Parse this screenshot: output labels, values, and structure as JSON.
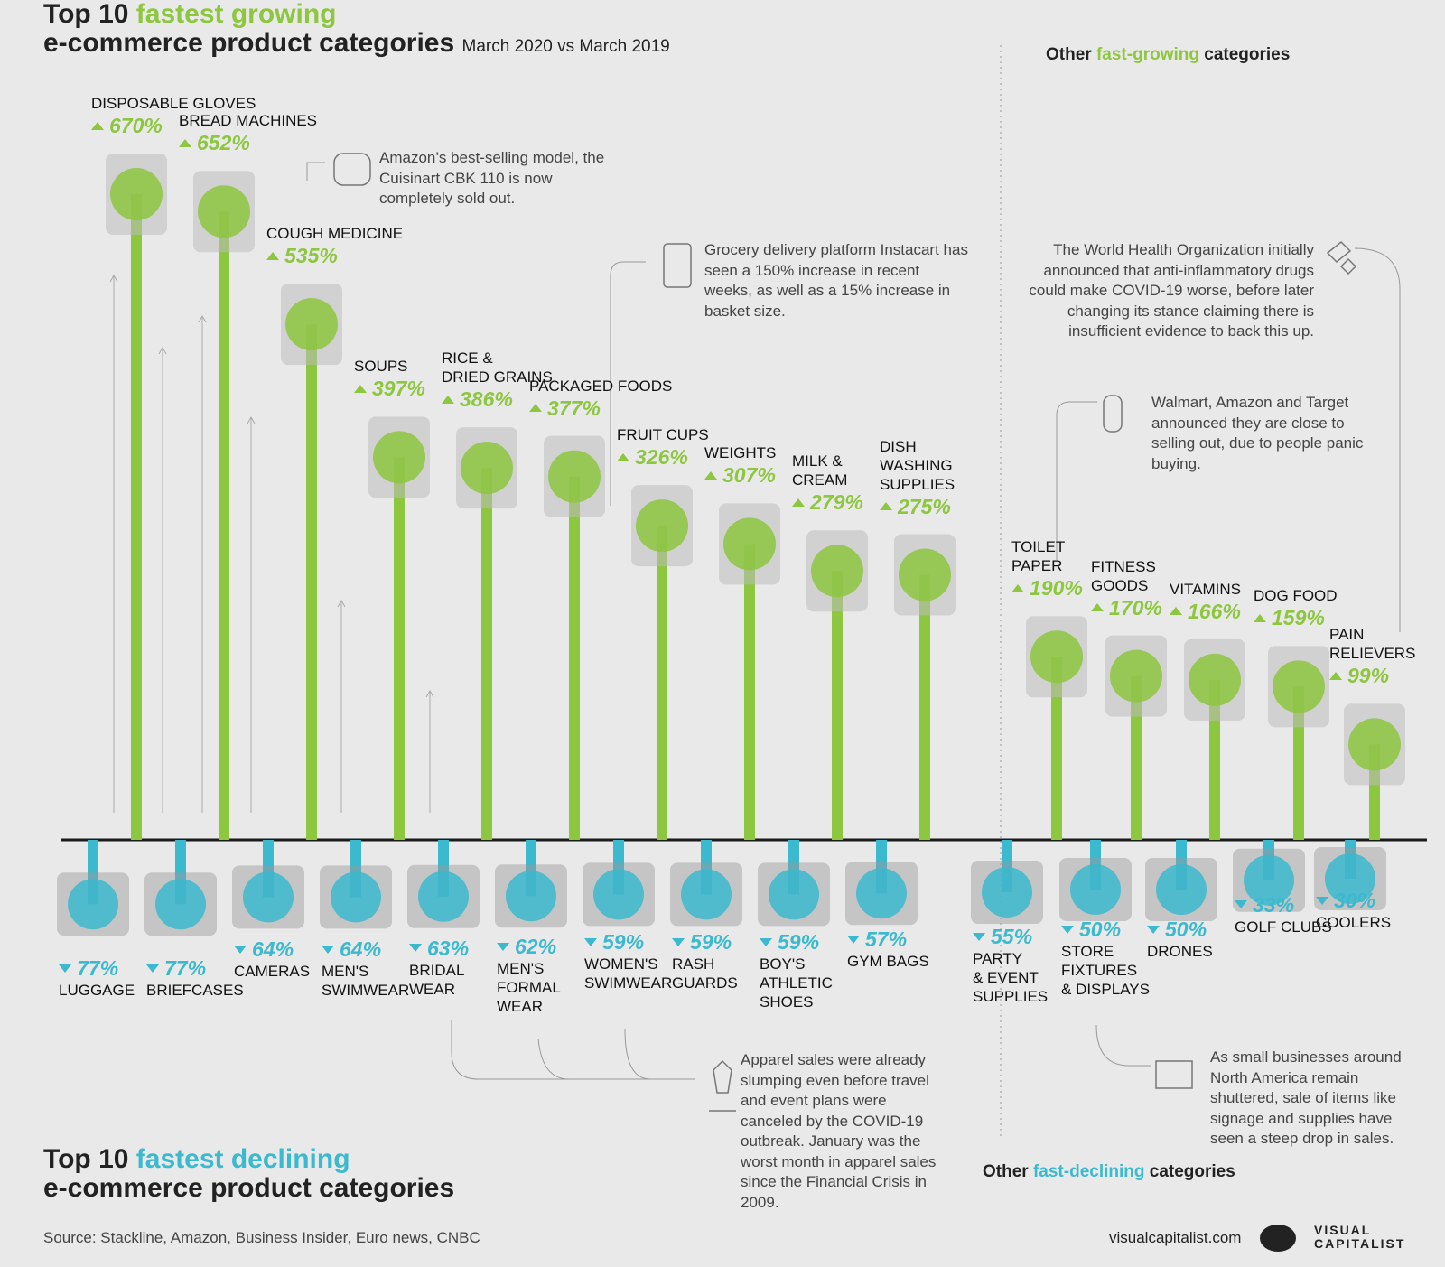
{
  "chart_data": [
    {
      "type": "lollipop",
      "orientation": "up",
      "color": "#8dc63f",
      "title_parts": [
        "Top 10",
        "fastest growing",
        "e-commerce product categories"
      ],
      "subtitle": "March 2020 vs March 2019",
      "other_title_parts": [
        "Other",
        "fast-growing",
        "categories"
      ],
      "categories": [
        "DISPOSABLE GLOVES",
        "BREAD MACHINES",
        "COUGH MEDICINE",
        "SOUPS",
        "RICE &\nDRIED GRAINS",
        "PACKAGED FOODS",
        "FRUIT CUPS",
        "WEIGHTS",
        "MILK &\nCREAM",
        "DISH\nWASHING\nSUPPLIES",
        "TOILET\nPAPER",
        "FITNESS\nGOODS",
        "VITAMINS",
        "DOG FOOD",
        "PAIN\nRELIEVERS"
      ],
      "values": [
        670,
        652,
        535,
        397,
        386,
        377,
        326,
        307,
        279,
        275,
        190,
        170,
        166,
        159,
        99
      ],
      "value_labels": [
        "670%",
        "652%",
        "535%",
        "397%",
        "386%",
        "377%",
        "326%",
        "307%",
        "279%",
        "275%",
        "190%",
        "170%",
        "166%",
        "159%",
        "99%"
      ]
    },
    {
      "type": "lollipop",
      "orientation": "down",
      "color": "#3bb9ce",
      "title_parts": [
        "Top 10",
        "fastest declining",
        "e-commerce product categories"
      ],
      "other_title_parts": [
        "Other",
        "fast-declining",
        "categories"
      ],
      "categories": [
        "LUGGAGE",
        "BRIEFCASES",
        "CAMERAS",
        "MEN'S\nSWIMWEAR",
        "BRIDAL\nWEAR",
        "MEN'S\nFORMAL\nWEAR",
        "WOMEN'S\nSWIMWEAR",
        "RASH\nGUARDS",
        "BOY'S\nATHLETIC\nSHOES",
        "GYM BAGS",
        "PARTY\n& EVENT\nSUPPLIES",
        "STORE\nFIXTURES\n& DISPLAYS",
        "DRONES",
        "GOLF CLUBS",
        "COOLERS"
      ],
      "values": [
        77,
        77,
        64,
        64,
        63,
        62,
        59,
        59,
        59,
        57,
        55,
        50,
        50,
        33,
        30
      ],
      "value_labels": [
        "77%",
        "77%",
        "64%",
        "64%",
        "63%",
        "62%",
        "59%",
        "59%",
        "59%",
        "57%",
        "55%",
        "50%",
        "50%",
        "33%",
        "30%"
      ]
    }
  ],
  "annotations": [
    "Amazon’s best-selling model, the Cuisinart CBK 110 is now completely sold out.",
    "Grocery delivery platform Instacart has seen a 150% increase in recent weeks, as well as a 15% increase in basket size.",
    "The World Health Organization initially announced that anti-inflammatory drugs could make COVID-19 worse, before later changing its stance claiming there is insufficient evidence to back this up.",
    "Walmart, Amazon and Target announced they are close to selling out, due to people panic buying.",
    "Apparel sales were already slumping even before travel and event plans were canceled by the COVID-19 outbreak. January was the worst month in apparel sales since the Financial Crisis in 2009.",
    "As small businesses around North America remain shuttered, sale of items like signage and supplies have seen a steep drop in sales."
  ],
  "source": "Source: Stackline, Amazon, Business Insider, Euro news, CNBC",
  "website": "visualcapitalist.com",
  "brand": "VISUAL\nCAPITALIST"
}
